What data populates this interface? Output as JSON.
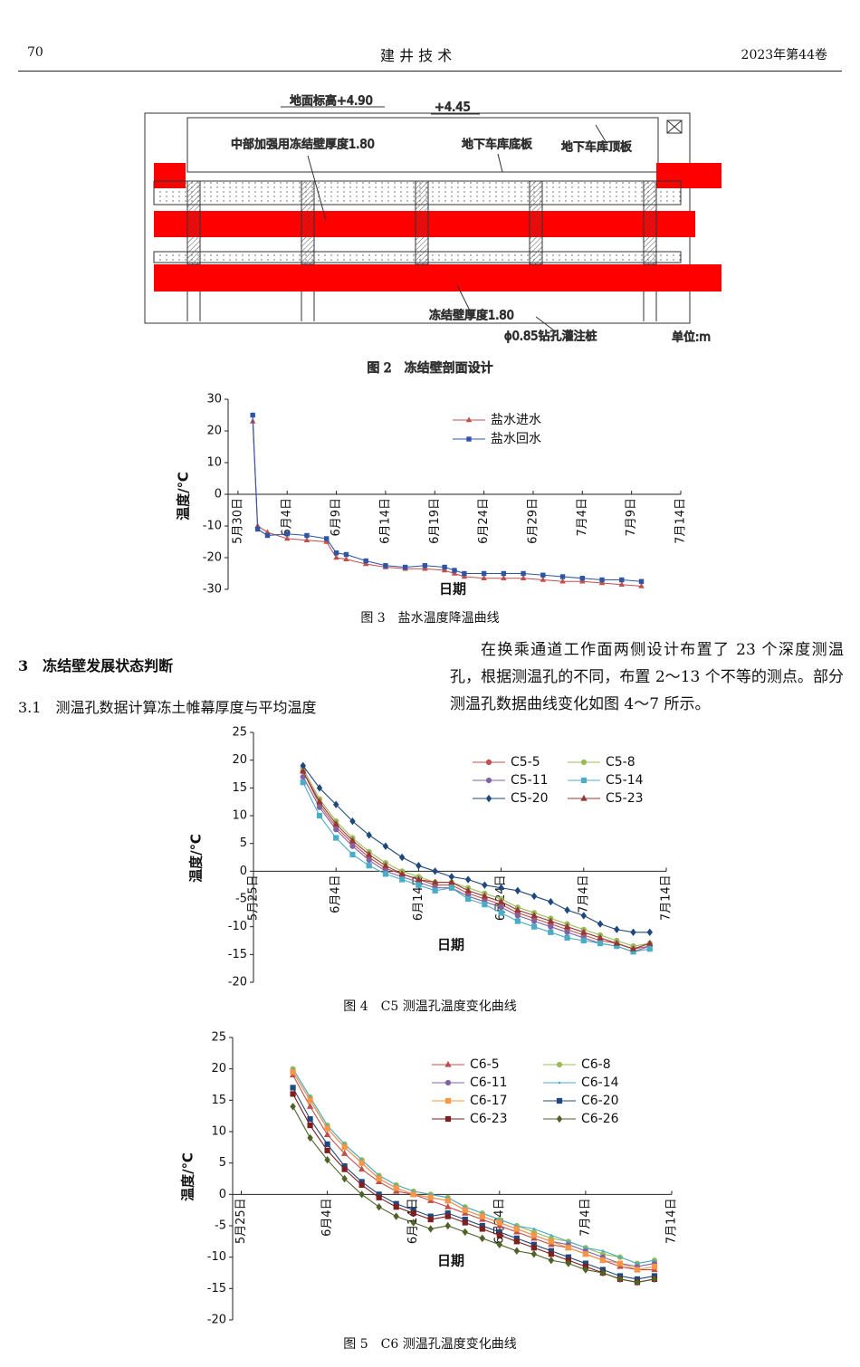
{
  "header": {
    "page": "70",
    "journal": "建 井 技 术",
    "issue": "2023年第44卷"
  },
  "figure2": {
    "labels": [
      "地面标高+4.90",
      "+4.45",
      "中部加强用冻结壁厚度1.80",
      "地下车库底板",
      "地下车库顶板",
      "冻结壁厚度1.80",
      "ϕ0.85钻孔灌注桩",
      "单位:m"
    ],
    "caption": "图 2　冻结壁剖面设计"
  },
  "section": {
    "title": "3　冻结壁发展状态判断",
    "subtitle": "3.1　测温孔数据计算冻土帷幕厚度与平均温度"
  },
  "paragraph": "在换乘通道工作面两侧设计布置了 23 个深度测温孔，根据测温孔的不同，布置 2～13 个不等的测点。部分测温孔数据曲线变化如图 4～7 所示。",
  "chart_data": [
    {
      "type": "line",
      "caption": "图 3　盐水温度降温曲线",
      "x_label": "日期",
      "y_label": "温度/℃",
      "legend": "upper right",
      "xlim": [
        -1,
        45
      ],
      "ylim": [
        -30,
        30
      ],
      "yticks": [
        -30,
        -20,
        -10,
        0,
        10,
        20,
        30
      ],
      "xticks": [
        {
          "value": 0,
          "label": "5月30日"
        },
        {
          "value": 5,
          "label": "6月4日"
        },
        {
          "value": 10,
          "label": "6月9日"
        },
        {
          "value": 15,
          "label": "6月14日"
        },
        {
          "value": 20,
          "label": "6月19日"
        },
        {
          "value": 25,
          "label": "6月24日"
        },
        {
          "value": 30,
          "label": "6月29日"
        },
        {
          "value": 35,
          "label": "7月4日"
        },
        {
          "value": 40,
          "label": "7月9日"
        },
        {
          "value": 45,
          "label": "7月14日"
        }
      ],
      "x": [
        1.5,
        2,
        3,
        5,
        7,
        9,
        10,
        11,
        13,
        15,
        17,
        19,
        21,
        22,
        23,
        25,
        27,
        29,
        31,
        33,
        35,
        37,
        39,
        41
      ],
      "series": [
        {
          "name": "盐水进水",
          "color": "#c0504d",
          "marker": "triangle",
          "values": [
            23,
            -10,
            -12,
            -14,
            -14.5,
            -15,
            -20,
            -20.5,
            -22,
            -23,
            -23.5,
            -23.5,
            -24,
            -25,
            -26,
            -26.5,
            -26.5,
            -26.5,
            -27,
            -27.5,
            -27.5,
            -28,
            -28.5,
            -29
          ]
        },
        {
          "name": "盐水回水",
          "color": "#2f55a4",
          "marker": "square",
          "values": [
            25,
            -11,
            -13,
            -12.5,
            -13,
            -14,
            -18.5,
            -19,
            -21,
            -22.5,
            -23,
            -22.5,
            -23,
            -24,
            -25,
            -25,
            -25,
            -25,
            -25.5,
            -26,
            -26.5,
            -27,
            -27,
            -27.5
          ]
        }
      ]
    },
    {
      "type": "line",
      "caption": "图 4　C5 测温孔温度变化曲线",
      "x_label": "日期",
      "y_label": "温度/℃",
      "legend": "upper right",
      "xlim": [
        0,
        50
      ],
      "ylim": [
        -20,
        25
      ],
      "yticks": [
        -20,
        -15,
        -10,
        -5,
        0,
        5,
        10,
        15,
        20,
        25
      ],
      "xticks": [
        {
          "value": 0,
          "label": "5月25日"
        },
        {
          "value": 10,
          "label": "6月4日"
        },
        {
          "value": 20,
          "label": "6月14日"
        },
        {
          "value": 30,
          "label": "6月24日"
        },
        {
          "value": 40,
          "label": "7月4日"
        },
        {
          "value": 50,
          "label": "7月14日"
        }
      ],
      "x": [
        6,
        8,
        10,
        12,
        14,
        16,
        18,
        20,
        22,
        24,
        26,
        28,
        30,
        32,
        34,
        36,
        38,
        40,
        42,
        44,
        46,
        48
      ],
      "series": [
        {
          "name": "C5-5",
          "color": "#c0504d",
          "marker": "circle",
          "values": [
            18,
            12,
            8,
            5,
            2.5,
            0.5,
            -0.5,
            -1.5,
            -2.5,
            -2.5,
            -4,
            -5,
            -6,
            -7.5,
            -8.5,
            -9.5,
            -10.5,
            -11.5,
            -12.5,
            -13,
            -14,
            -13.5
          ]
        },
        {
          "name": "C5-8",
          "color": "#9bbb59",
          "marker": "circle",
          "values": [
            18.5,
            13,
            9,
            6,
            3.5,
            1.5,
            0,
            -1,
            -2,
            -2,
            -3,
            -4,
            -5,
            -6.5,
            -7.5,
            -8.5,
            -9.5,
            -10.5,
            -11.5,
            -12.5,
            -13.5,
            -13
          ]
        },
        {
          "name": "C5-11",
          "color": "#8064a2",
          "marker": "circle",
          "values": [
            17,
            11.5,
            7.5,
            4.5,
            2,
            0,
            -1,
            -2,
            -3,
            -3,
            -4.5,
            -5.5,
            -6.5,
            -8,
            -9,
            -10,
            -11,
            -12,
            -13,
            -13.5,
            -14.5,
            -13.5
          ]
        },
        {
          "name": "C5-14",
          "color": "#4bacc6",
          "marker": "square",
          "values": [
            16,
            10,
            6,
            3,
            1,
            -0.5,
            -1.5,
            -2.5,
            -3.5,
            -3,
            -5,
            -6,
            -7.5,
            -9,
            -10,
            -11,
            -12,
            -12.5,
            -13,
            -13.5,
            -14.5,
            -14
          ]
        },
        {
          "name": "C5-20",
          "color": "#1f497d",
          "marker": "diamond",
          "values": [
            19,
            15,
            12,
            9,
            6.5,
            4.5,
            2.5,
            1,
            0,
            -1,
            -1.5,
            -2.5,
            -3,
            -3.5,
            -4.5,
            -5.5,
            -7,
            -8,
            -9.5,
            -10.5,
            -11,
            -11
          ]
        },
        {
          "name": "C5-23",
          "color": "#953735",
          "marker": "triangle",
          "values": [
            18,
            12.5,
            8.5,
            5.5,
            3,
            1,
            -0.5,
            -1.5,
            -2,
            -2,
            -3.5,
            -4.5,
            -5.5,
            -7,
            -8,
            -9,
            -10,
            -11,
            -12,
            -13,
            -14,
            -13
          ]
        }
      ]
    },
    {
      "type": "line",
      "caption": "图 5　C6 测温孔温度变化曲线",
      "x_label": "日期",
      "y_label": "温度/℃",
      "legend": "upper right",
      "xlim": [
        -1,
        50
      ],
      "ylim": [
        -20,
        25
      ],
      "yticks": [
        -20,
        -15,
        -10,
        -5,
        0,
        5,
        10,
        15,
        20,
        25
      ],
      "xticks": [
        {
          "value": 0,
          "label": "5月25日"
        },
        {
          "value": 10,
          "label": "6月4日"
        },
        {
          "value": 20,
          "label": "6月14日"
        },
        {
          "value": 30,
          "label": "6月24日"
        },
        {
          "value": 40,
          "label": "7月4日"
        },
        {
          "value": 50,
          "label": "7月14日"
        }
      ],
      "x": [
        6,
        8,
        10,
        12,
        14,
        16,
        18,
        20,
        22,
        24,
        26,
        28,
        30,
        32,
        34,
        36,
        38,
        40,
        42,
        44,
        46,
        48
      ],
      "series": [
        {
          "name": "C6-5",
          "color": "#c0504d",
          "marker": "triangle",
          "values": [
            19,
            14,
            9.5,
            6.5,
            4,
            2,
            0.5,
            0,
            -1,
            -2,
            -3,
            -4,
            -5,
            -6,
            -7,
            -8,
            -8.5,
            -9.5,
            -10.5,
            -11.5,
            -12,
            -12
          ]
        },
        {
          "name": "C6-8",
          "color": "#9bbb59",
          "marker": "circle",
          "values": [
            20,
            15.5,
            11,
            8,
            5.5,
            3,
            1.5,
            0.5,
            0,
            -0.5,
            -2,
            -3,
            -4,
            -5,
            -6,
            -7,
            -7.5,
            -8.5,
            -9.5,
            -10,
            -11,
            -10.5
          ]
        },
        {
          "name": "C6-11",
          "color": "#8064a2",
          "marker": "circle",
          "values": [
            19.5,
            15,
            10.5,
            7.5,
            5,
            2.5,
            1,
            0,
            -0.5,
            -1,
            -2.5,
            -3.5,
            -4.5,
            -5.5,
            -6.5,
            -7.5,
            -8,
            -9,
            -10,
            -11,
            -11.5,
            -11
          ]
        },
        {
          "name": "C6-14",
          "color": "#4bacc6",
          "marker": "none",
          "values": [
            20,
            15.5,
            11,
            8,
            5.5,
            3,
            1.5,
            0.5,
            0,
            -0.5,
            -2,
            -3,
            -4,
            -5,
            -5.5,
            -6.5,
            -7.5,
            -8.5,
            -9,
            -10,
            -11,
            -10.5
          ]
        },
        {
          "name": "C6-17",
          "color": "#f79646",
          "marker": "square",
          "values": [
            19.5,
            15,
            10.5,
            7.5,
            5,
            2.5,
            1,
            0,
            -0.5,
            -1,
            -2.5,
            -3.5,
            -4.5,
            -5.5,
            -6.5,
            -7.5,
            -8.5,
            -9.5,
            -10.5,
            -11,
            -12,
            -11.5
          ]
        },
        {
          "name": "C6-20",
          "color": "#1f497d",
          "marker": "square",
          "values": [
            17,
            12,
            8,
            4.5,
            2,
            0,
            -1.5,
            -2.5,
            -3.5,
            -3,
            -4,
            -5,
            -6,
            -7,
            -8,
            -9,
            -10,
            -11,
            -12,
            -13,
            -13.5,
            -13
          ]
        },
        {
          "name": "C6-23",
          "color": "#7f1f1f",
          "marker": "square",
          "values": [
            16,
            11,
            7,
            4,
            1.5,
            -0.5,
            -2,
            -3,
            -4,
            -3.5,
            -4.5,
            -5.5,
            -6.5,
            -7.5,
            -8.5,
            -9.5,
            -10.5,
            -11.5,
            -12.5,
            -13.5,
            -14,
            -13.5
          ]
        },
        {
          "name": "C6-26",
          "color": "#4f6228",
          "marker": "diamond",
          "values": [
            14,
            9,
            5.5,
            2.5,
            0,
            -2,
            -3.5,
            -4.5,
            -5.5,
            -5,
            -6,
            -7,
            -8,
            -9,
            -9.5,
            -10.5,
            -11,
            -12,
            -12.5,
            -13.5,
            -14,
            -13.5
          ]
        }
      ]
    }
  ]
}
